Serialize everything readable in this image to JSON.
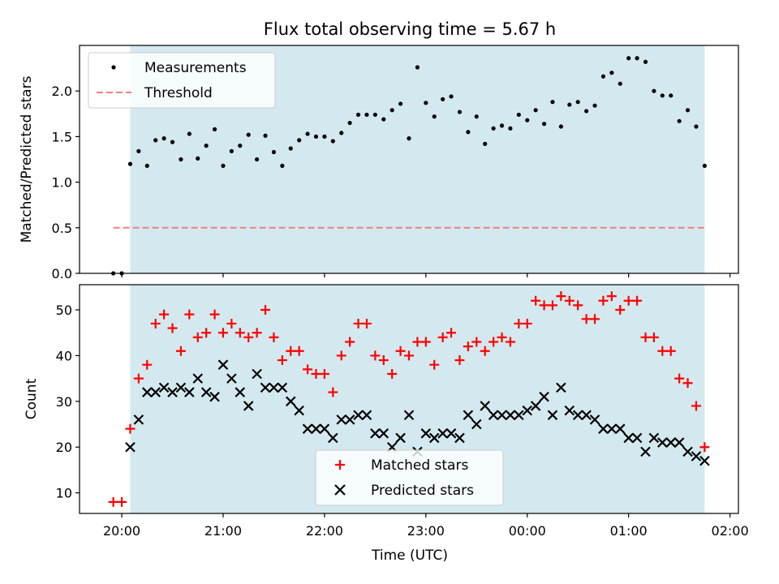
{
  "chart_data": [
    {
      "type": "scatter",
      "title": "Flux total observing time = 5.67 h",
      "xlabel": "",
      "ylabel": "Matched/Predicted stars",
      "ylim": [
        0,
        2.5
      ],
      "yticks": [
        0.0,
        0.5,
        1.0,
        1.5,
        2.0
      ],
      "ytick_labels": [
        "0.0",
        "0.5",
        "1.0",
        "1.5",
        "2.0"
      ],
      "shaded_span": {
        "start": "20:05",
        "end": "01:45",
        "color": "#d3e9ef"
      },
      "legend": {
        "position": "upper-left",
        "entries": [
          {
            "label": "Measurements",
            "marker": "dot",
            "color": "#000000"
          },
          {
            "label": "Threshold",
            "marker": "dashed-line",
            "color": "#f08080"
          }
        ]
      },
      "threshold": {
        "name": "Threshold",
        "value": 0.5,
        "x_start": "19:55",
        "x_end": "01:45",
        "color": "#f08080"
      },
      "series": [
        {
          "name": "Measurements",
          "color": "#000000",
          "points": [
            [
              "19:55",
              0.0
            ],
            [
              "20:00",
              0.0
            ],
            [
              "20:05",
              1.2
            ],
            [
              "20:10",
              1.34
            ],
            [
              "20:15",
              1.18
            ],
            [
              "20:20",
              1.46
            ],
            [
              "20:25",
              1.48
            ],
            [
              "20:30",
              1.44
            ],
            [
              "20:35",
              1.25
            ],
            [
              "20:40",
              1.53
            ],
            [
              "20:45",
              1.26
            ],
            [
              "20:50",
              1.4
            ],
            [
              "20:55",
              1.58
            ],
            [
              "21:00",
              1.18
            ],
            [
              "21:05",
              1.34
            ],
            [
              "21:10",
              1.4
            ],
            [
              "21:15",
              1.52
            ],
            [
              "21:20",
              1.25
            ],
            [
              "21:25",
              1.51
            ],
            [
              "21:30",
              1.33
            ],
            [
              "21:35",
              1.18
            ],
            [
              "21:40",
              1.37
            ],
            [
              "21:45",
              1.46
            ],
            [
              "21:50",
              1.53
            ],
            [
              "21:55",
              1.5
            ],
            [
              "22:00",
              1.5
            ],
            [
              "22:05",
              1.45
            ],
            [
              "22:10",
              1.54
            ],
            [
              "22:15",
              1.65
            ],
            [
              "22:20",
              1.74
            ],
            [
              "22:25",
              1.74
            ],
            [
              "22:30",
              1.74
            ],
            [
              "22:35",
              1.69
            ],
            [
              "22:40",
              1.79
            ],
            [
              "22:45",
              1.86
            ],
            [
              "22:50",
              1.48
            ],
            [
              "22:55",
              2.26
            ],
            [
              "23:00",
              1.87
            ],
            [
              "23:05",
              1.72
            ],
            [
              "23:10",
              1.91
            ],
            [
              "23:15",
              1.94
            ],
            [
              "23:20",
              1.77
            ],
            [
              "23:25",
              1.55
            ],
            [
              "23:30",
              1.72
            ],
            [
              "23:35",
              1.42
            ],
            [
              "23:40",
              1.59
            ],
            [
              "23:45",
              1.62
            ],
            [
              "23:50",
              1.59
            ],
            [
              "23:55",
              1.74
            ],
            [
              "00:00",
              1.68
            ],
            [
              "00:05",
              1.79
            ],
            [
              "00:10",
              1.64
            ],
            [
              "00:15",
              1.88
            ],
            [
              "00:20",
              1.61
            ],
            [
              "00:25",
              1.85
            ],
            [
              "00:30",
              1.88
            ],
            [
              "00:35",
              1.78
            ],
            [
              "00:40",
              1.84
            ],
            [
              "00:45",
              2.16
            ],
            [
              "00:50",
              2.2
            ],
            [
              "00:55",
              2.08
            ],
            [
              "01:00",
              2.36
            ],
            [
              "01:05",
              2.36
            ],
            [
              "01:10",
              2.32
            ],
            [
              "01:15",
              2.0
            ],
            [
              "01:20",
              1.95
            ],
            [
              "01:25",
              1.95
            ],
            [
              "01:30",
              1.67
            ],
            [
              "01:35",
              1.79
            ],
            [
              "01:40",
              1.61
            ],
            [
              "01:45",
              1.18
            ]
          ]
        }
      ]
    },
    {
      "type": "scatter",
      "title": "",
      "xlabel": "Time (UTC)",
      "ylabel": "Count",
      "ylim": [
        5.5,
        55.5
      ],
      "yticks": [
        10,
        20,
        30,
        40,
        50
      ],
      "ytick_labels": [
        "10",
        "20",
        "30",
        "40",
        "50"
      ],
      "xlim": [
        "19:35",
        "02:05"
      ],
      "xticks": [
        "20:00",
        "21:00",
        "22:00",
        "23:00",
        "00:00",
        "01:00",
        "02:00"
      ],
      "shaded_span": {
        "start": "20:05",
        "end": "01:45",
        "color": "#d3e9ef"
      },
      "legend": {
        "position": "lower-center",
        "entries": [
          {
            "label": "Matched stars",
            "marker": "plus",
            "color": "#ff0000"
          },
          {
            "label": "Predicted stars",
            "marker": "x",
            "color": "#000000"
          }
        ]
      },
      "series": [
        {
          "name": "Matched stars",
          "color": "#ff0000",
          "points": [
            [
              "19:55",
              8
            ],
            [
              "20:00",
              8
            ],
            [
              "20:05",
              24
            ],
            [
              "20:10",
              35
            ],
            [
              "20:15",
              38
            ],
            [
              "20:20",
              47
            ],
            [
              "20:25",
              49
            ],
            [
              "20:30",
              46
            ],
            [
              "20:35",
              41
            ],
            [
              "20:40",
              49
            ],
            [
              "20:45",
              44
            ],
            [
              "20:50",
              45
            ],
            [
              "20:55",
              49
            ],
            [
              "21:00",
              45
            ],
            [
              "21:05",
              47
            ],
            [
              "21:10",
              45
            ],
            [
              "21:15",
              44
            ],
            [
              "21:20",
              45
            ],
            [
              "21:25",
              50
            ],
            [
              "21:30",
              44
            ],
            [
              "21:35",
              39
            ],
            [
              "21:40",
              41
            ],
            [
              "21:45",
              41
            ],
            [
              "21:50",
              37
            ],
            [
              "21:55",
              36
            ],
            [
              "22:00",
              36
            ],
            [
              "22:05",
              32
            ],
            [
              "22:10",
              40
            ],
            [
              "22:15",
              43
            ],
            [
              "22:20",
              47
            ],
            [
              "22:25",
              47
            ],
            [
              "22:30",
              40
            ],
            [
              "22:35",
              39
            ],
            [
              "22:40",
              36
            ],
            [
              "22:45",
              41
            ],
            [
              "22:50",
              40
            ],
            [
              "22:55",
              43
            ],
            [
              "23:00",
              43
            ],
            [
              "23:05",
              38
            ],
            [
              "23:10",
              44
            ],
            [
              "23:15",
              45
            ],
            [
              "23:20",
              39
            ],
            [
              "23:25",
              42
            ],
            [
              "23:30",
              43
            ],
            [
              "23:35",
              41
            ],
            [
              "23:40",
              43
            ],
            [
              "23:45",
              44
            ],
            [
              "23:50",
              43
            ],
            [
              "23:55",
              47
            ],
            [
              "00:00",
              47
            ],
            [
              "00:05",
              52
            ],
            [
              "00:10",
              51
            ],
            [
              "00:15",
              51
            ],
            [
              "00:20",
              53
            ],
            [
              "00:25",
              52
            ],
            [
              "00:30",
              51
            ],
            [
              "00:35",
              48
            ],
            [
              "00:40",
              48
            ],
            [
              "00:45",
              52
            ],
            [
              "00:50",
              53
            ],
            [
              "00:55",
              50
            ],
            [
              "01:00",
              52
            ],
            [
              "01:05",
              52
            ],
            [
              "01:10",
              44
            ],
            [
              "01:15",
              44
            ],
            [
              "01:20",
              41
            ],
            [
              "01:25",
              41
            ],
            [
              "01:30",
              35
            ],
            [
              "01:35",
              34
            ],
            [
              "01:40",
              29
            ],
            [
              "01:45",
              20
            ]
          ]
        },
        {
          "name": "Predicted stars",
          "color": "#000000",
          "points": [
            [
              "20:05",
              20
            ],
            [
              "20:10",
              26
            ],
            [
              "20:15",
              32
            ],
            [
              "20:20",
              32
            ],
            [
              "20:25",
              33
            ],
            [
              "20:30",
              32
            ],
            [
              "20:35",
              33
            ],
            [
              "20:40",
              32
            ],
            [
              "20:45",
              35
            ],
            [
              "20:50",
              32
            ],
            [
              "20:55",
              31
            ],
            [
              "21:00",
              38
            ],
            [
              "21:05",
              35
            ],
            [
              "21:10",
              32
            ],
            [
              "21:15",
              29
            ],
            [
              "21:20",
              36
            ],
            [
              "21:25",
              33
            ],
            [
              "21:30",
              33
            ],
            [
              "21:35",
              33
            ],
            [
              "21:40",
              30
            ],
            [
              "21:45",
              28
            ],
            [
              "21:50",
              24
            ],
            [
              "21:55",
              24
            ],
            [
              "22:00",
              24
            ],
            [
              "22:05",
              22
            ],
            [
              "22:10",
              26
            ],
            [
              "22:15",
              26
            ],
            [
              "22:20",
              27
            ],
            [
              "22:25",
              27
            ],
            [
              "22:30",
              23
            ],
            [
              "22:35",
              23
            ],
            [
              "22:40",
              20
            ],
            [
              "22:45",
              22
            ],
            [
              "22:50",
              27
            ],
            [
              "22:55",
              19
            ],
            [
              "23:00",
              23
            ],
            [
              "23:05",
              22
            ],
            [
              "23:10",
              23
            ],
            [
              "23:15",
              23
            ],
            [
              "23:20",
              22
            ],
            [
              "23:25",
              27
            ],
            [
              "23:30",
              25
            ],
            [
              "23:35",
              29
            ],
            [
              "23:40",
              27
            ],
            [
              "23:45",
              27
            ],
            [
              "23:50",
              27
            ],
            [
              "23:55",
              27
            ],
            [
              "00:00",
              28
            ],
            [
              "00:05",
              29
            ],
            [
              "00:10",
              31
            ],
            [
              "00:15",
              27
            ],
            [
              "00:20",
              33
            ],
            [
              "00:25",
              28
            ],
            [
              "00:30",
              27
            ],
            [
              "00:35",
              27
            ],
            [
              "00:40",
              26
            ],
            [
              "00:45",
              24
            ],
            [
              "00:50",
              24
            ],
            [
              "00:55",
              24
            ],
            [
              "01:00",
              22
            ],
            [
              "01:05",
              22
            ],
            [
              "01:10",
              19
            ],
            [
              "01:15",
              22
            ],
            [
              "01:20",
              21
            ],
            [
              "01:25",
              21
            ],
            [
              "01:30",
              21
            ],
            [
              "01:35",
              19
            ],
            [
              "01:40",
              18
            ],
            [
              "01:45",
              17
            ]
          ]
        }
      ]
    }
  ]
}
